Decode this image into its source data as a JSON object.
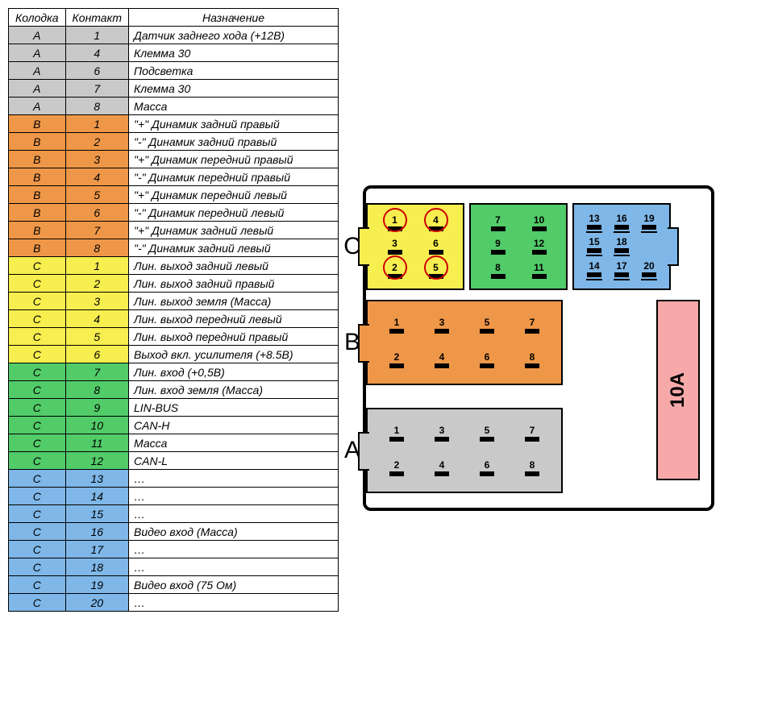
{
  "colors": {
    "grey": "#c9c9c9",
    "orange": "#ef9748",
    "yellow": "#f7ee4f",
    "green": "#52cb69",
    "blue": "#7fb7e8",
    "fuse": "#f7a9a9",
    "border": "#000000",
    "circle": "#cc0000"
  },
  "table": {
    "headers": [
      "Колодка",
      "Контакт",
      "Назначение"
    ],
    "rows": [
      {
        "c": "grey",
        "a": "A",
        "b": "1",
        "d": "Датчик заднего хода (+12В)"
      },
      {
        "c": "grey",
        "a": "A",
        "b": "4",
        "d": "Клемма 30"
      },
      {
        "c": "grey",
        "a": "A",
        "b": "6",
        "d": "Подсветка"
      },
      {
        "c": "grey",
        "a": "A",
        "b": "7",
        "d": "Клемма 30"
      },
      {
        "c": "grey",
        "a": "A",
        "b": "8",
        "d": "Масса"
      },
      {
        "c": "orange",
        "a": "B",
        "b": "1",
        "d": "\"+\" Динамик задний правый"
      },
      {
        "c": "orange",
        "a": "B",
        "b": "2",
        "d": "\"-\" Динамик задний правый"
      },
      {
        "c": "orange",
        "a": "B",
        "b": "3",
        "d": "\"+\" Динамик передний правый"
      },
      {
        "c": "orange",
        "a": "B",
        "b": "4",
        "d": "\"-\" Динамик передний правый"
      },
      {
        "c": "orange",
        "a": "B",
        "b": "5",
        "d": "\"+\" Динамик передний левый"
      },
      {
        "c": "orange",
        "a": "B",
        "b": "6",
        "d": "\"-\" Динамик передний левый"
      },
      {
        "c": "orange",
        "a": "B",
        "b": "7",
        "d": "\"+\" Динамик задний левый"
      },
      {
        "c": "orange",
        "a": "B",
        "b": "8",
        "d": "\"-\" Динамик задний левый"
      },
      {
        "c": "yellow",
        "a": "C",
        "b": "1",
        "d": "Лин. выход задний левый"
      },
      {
        "c": "yellow",
        "a": "C",
        "b": "2",
        "d": "Лин. выход задний правый"
      },
      {
        "c": "yellow",
        "a": "C",
        "b": "3",
        "d": "Лин. выход земля (Масса)"
      },
      {
        "c": "yellow",
        "a": "C",
        "b": "4",
        "d": "Лин. выход передний левый"
      },
      {
        "c": "yellow",
        "a": "C",
        "b": "5",
        "d": "Лин. выход передний правый"
      },
      {
        "c": "yellow",
        "a": "C",
        "b": "6",
        "d": "Выход вкл. усилителя (+8.5В)"
      },
      {
        "c": "green",
        "a": "C",
        "b": "7",
        "d": "Лин. вход (+0,5В)"
      },
      {
        "c": "green",
        "a": "C",
        "b": "8",
        "d": "Лин. вход земля (Масса)"
      },
      {
        "c": "green",
        "a": "C",
        "b": "9",
        "d": "LIN-BUS"
      },
      {
        "c": "green",
        "a": "C",
        "b": "10",
        "d": "CAN-H"
      },
      {
        "c": "green",
        "a": "C",
        "b": "11",
        "d": "Масса"
      },
      {
        "c": "green",
        "a": "C",
        "b": "12",
        "d": "CAN-L"
      },
      {
        "c": "blue",
        "a": "C",
        "b": "13",
        "d": "…"
      },
      {
        "c": "blue",
        "a": "C",
        "b": "14",
        "d": "…"
      },
      {
        "c": "blue",
        "a": "C",
        "b": "15",
        "d": "…"
      },
      {
        "c": "blue",
        "a": "C",
        "b": "16",
        "d": "Видео вход (Масса)"
      },
      {
        "c": "blue",
        "a": "C",
        "b": "17",
        "d": "…"
      },
      {
        "c": "blue",
        "a": "C",
        "b": "18",
        "d": "…"
      },
      {
        "c": "blue",
        "a": "C",
        "b": "19",
        "d": "Видео вход (75 Ом)"
      },
      {
        "c": "blue",
        "a": "C",
        "b": "20",
        "d": "…"
      }
    ]
  },
  "diagram": {
    "rowC": {
      "label": "C",
      "blocks": [
        {
          "color": "yellow",
          "layout": "3x3",
          "pins": [
            [
              1,
              4
            ],
            [
              3,
              6
            ],
            [
              2,
              5
            ]
          ],
          "circled": [
            1,
            4,
            2,
            5
          ],
          "notch": "left"
        },
        {
          "color": "green",
          "layout": "2x3",
          "pins": [
            [
              7,
              10
            ],
            [
              9,
              12
            ],
            [
              8,
              11
            ]
          ]
        },
        {
          "color": "blue",
          "layout": "3x3",
          "pins": [
            [
              13,
              16,
              19
            ],
            [
              15,
              18
            ],
            [
              14,
              17,
              20
            ]
          ],
          "notch": "right",
          "underline": true
        }
      ]
    },
    "rowB": {
      "label": "B",
      "color": "orange",
      "pins": [
        [
          1,
          3,
          5,
          7
        ],
        [
          2,
          4,
          6,
          8
        ]
      ],
      "notch": "left"
    },
    "rowA": {
      "label": "A",
      "color": "grey",
      "pins": [
        [
          1,
          3,
          5,
          7
        ],
        [
          2,
          4,
          6,
          8
        ]
      ],
      "notch": "left"
    },
    "fuse": {
      "label": "10A"
    }
  }
}
